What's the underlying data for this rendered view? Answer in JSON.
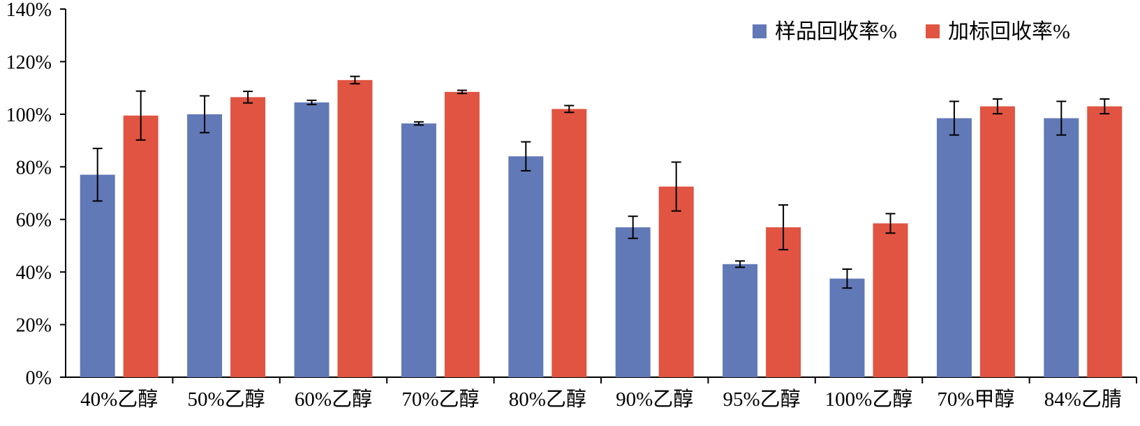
{
  "chart_data": {
    "type": "bar",
    "title": "",
    "xlabel": "",
    "ylabel": "",
    "ylim": [
      0,
      1.4
    ],
    "y_ticks": [
      "0%",
      "20%",
      "40%",
      "60%",
      "80%",
      "100%",
      "120%",
      "140%"
    ],
    "grid": false,
    "legend_position": "top-right",
    "categories": [
      "40%乙醇",
      "50%乙醇",
      "60%乙醇",
      "70%乙醇",
      "80%乙醇",
      "90%乙醇",
      "95%乙醇",
      "100%乙醇",
      "70%甲醇",
      "84%乙腈"
    ],
    "series": [
      {
        "name": "样品回收率%",
        "color": "#6279b7",
        "values": [
          0.77,
          1.0,
          1.045,
          0.965,
          0.84,
          0.57,
          0.43,
          0.375,
          0.985,
          0.985
        ],
        "errors": [
          0.1,
          0.07,
          0.008,
          0.006,
          0.055,
          0.042,
          0.012,
          0.036,
          0.064,
          0.064
        ]
      },
      {
        "name": "加标回收率%",
        "color": "#e05441",
        "values": [
          0.995,
          1.065,
          1.13,
          1.085,
          1.02,
          0.725,
          0.57,
          0.585,
          1.03,
          1.03
        ],
        "errors": [
          0.093,
          0.022,
          0.014,
          0.006,
          0.013,
          0.093,
          0.085,
          0.037,
          0.028,
          0.028
        ]
      }
    ]
  }
}
